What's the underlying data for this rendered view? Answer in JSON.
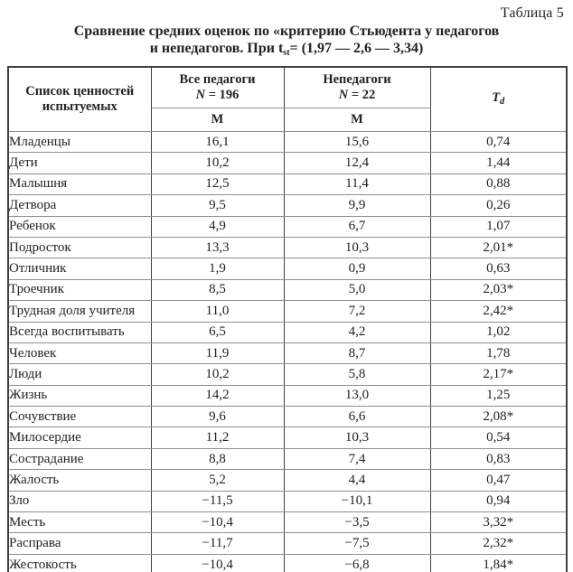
{
  "heading": {
    "table_label": "Таблица 5",
    "title_line1": "Сравнение средних оценок по «критерию Стьюдента у педагогов",
    "title_line2_pre": "и непедагогов. При t",
    "title_line2_sub": "st",
    "title_line2_post": "= (1,97 — 2,6 — 3,34)"
  },
  "table": {
    "header": {
      "col1_line1": "Список ценностей",
      "col1_line2": "испытуемых",
      "col2_line1": "Все педагоги",
      "col2_n": "N",
      "col2_n_rest": " = 196",
      "col3_line1": "Непедагоги",
      "col3_n": "N",
      "col3_n_rest": " = 22",
      "m_col2": "М",
      "m_col3": "М",
      "td_letter": "T",
      "td_sub": "d"
    },
    "rows": [
      {
        "label": "Младенцы",
        "all_teachers": "16,1",
        "non_teachers": "15,6",
        "td": "0,74"
      },
      {
        "label": "Дети",
        "all_teachers": "10,2",
        "non_teachers": "12,4",
        "td": "1,44"
      },
      {
        "label": "Малышня",
        "all_teachers": "12,5",
        "non_teachers": "11,4",
        "td": "0,88"
      },
      {
        "label": "Детвора",
        "all_teachers": "9,5",
        "non_teachers": "9,9",
        "td": "0,26"
      },
      {
        "label": "Ребенок",
        "all_teachers": "4,9",
        "non_teachers": "6,7",
        "td": "1,07"
      },
      {
        "label": "Подросток",
        "all_teachers": "13,3",
        "non_teachers": "10,3",
        "td": "2,01*"
      },
      {
        "label": "Отличник",
        "all_teachers": "1,9",
        "non_teachers": "0,9",
        "td": "0,63"
      },
      {
        "label": "Троечник",
        "all_teachers": "8,5",
        "non_teachers": "5,0",
        "td": "2,03*"
      },
      {
        "label": "Трудная доля учителя",
        "all_teachers": "11,0",
        "non_teachers": "7,2",
        "td": "2,42*"
      },
      {
        "label": "Всегда воспитывать",
        "all_teachers": "6,5",
        "non_teachers": "4,2",
        "td": "1,02"
      },
      {
        "label": "Человек",
        "all_teachers": "11,9",
        "non_teachers": "8,7",
        "td": "1,78"
      },
      {
        "label": "Люди",
        "all_teachers": "10,2",
        "non_teachers": "5,8",
        "td": "2,17*"
      },
      {
        "label": "Жизнь",
        "all_teachers": "14,2",
        "non_teachers": "13,0",
        "td": "1,25"
      },
      {
        "label": "Сочувствие",
        "all_teachers": "9,6",
        "non_teachers": "6,6",
        "td": "2,08*"
      },
      {
        "label": "Милосердие",
        "all_teachers": "11,2",
        "non_teachers": "10,3",
        "td": "0,54"
      },
      {
        "label": "Сострадание",
        "all_teachers": "8,8",
        "non_teachers": "7,4",
        "td": "0,83"
      },
      {
        "label": "Жалость",
        "all_teachers": "5,2",
        "non_teachers": "4,4",
        "td": "0,47"
      },
      {
        "label": "Зло",
        "all_teachers": "−11,5",
        "non_teachers": "−10,1",
        "td": "0,94"
      },
      {
        "label": "Месть",
        "all_teachers": "−10,4",
        "non_teachers": "−3,5",
        "td": "3,32*"
      },
      {
        "label": "Расправа",
        "all_teachers": "−11,7",
        "non_teachers": "−7,5",
        "td": "2,32*"
      },
      {
        "label": "Жестокость",
        "all_teachers": "−10,4",
        "non_teachers": "−6,8",
        "td": "1,84*"
      }
    ]
  }
}
